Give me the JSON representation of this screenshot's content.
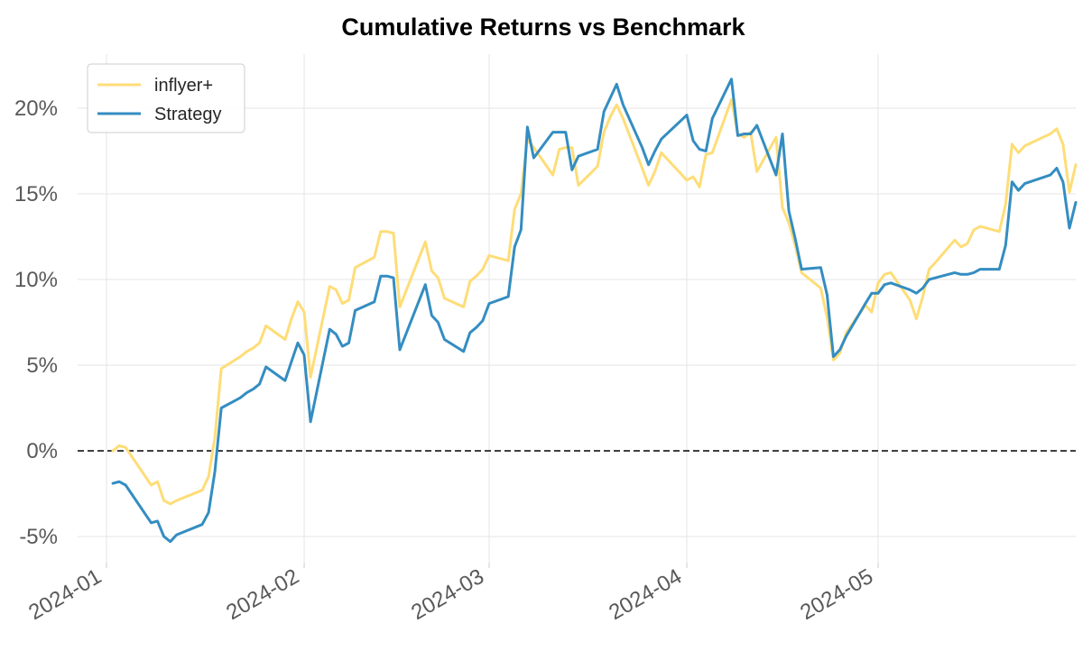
{
  "chart_data": {
    "type": "line",
    "title": "Cumulative Returns vs Benchmark",
    "xlabel": "",
    "ylabel": "",
    "x_tick_labels": [
      "2024-01",
      "2024-02",
      "2024-03",
      "2024-04",
      "2024-05"
    ],
    "y_tick_labels": [
      "-5%",
      "0%",
      "5%",
      "10%",
      "15%",
      "20%"
    ],
    "y_ticks": [
      -5,
      0,
      5,
      10,
      15,
      20
    ],
    "ylim": [
      -6.5,
      23
    ],
    "xlim": [
      "2023-12-24",
      "2024-05-30"
    ],
    "grid": true,
    "legend_position": "top-left",
    "zero_line": {
      "value": 0,
      "style": "dashed",
      "color": "#000000"
    },
    "series": [
      {
        "name": "inflyer+",
        "color": "#fedd78",
        "points": [
          [
            "2024-01-02",
            0.0
          ],
          [
            "2024-01-03",
            0.3
          ],
          [
            "2024-01-04",
            0.2
          ],
          [
            "2024-01-08",
            -2.0
          ],
          [
            "2024-01-09",
            -1.8
          ],
          [
            "2024-01-10",
            -2.9
          ],
          [
            "2024-01-11",
            -3.1
          ],
          [
            "2024-01-12",
            -2.9
          ],
          [
            "2024-01-16",
            -2.3
          ],
          [
            "2024-01-17",
            -1.5
          ],
          [
            "2024-01-18",
            0.8
          ],
          [
            "2024-01-19",
            4.8
          ],
          [
            "2024-01-22",
            5.5
          ],
          [
            "2024-01-23",
            5.8
          ],
          [
            "2024-01-24",
            6.0
          ],
          [
            "2024-01-25",
            6.3
          ],
          [
            "2024-01-26",
            7.3
          ],
          [
            "2024-01-29",
            6.5
          ],
          [
            "2024-01-30",
            7.7
          ],
          [
            "2024-01-31",
            8.7
          ],
          [
            "2024-02-01",
            8.1
          ],
          [
            "2024-02-02",
            4.3
          ],
          [
            "2024-02-05",
            9.6
          ],
          [
            "2024-02-06",
            9.4
          ],
          [
            "2024-02-07",
            8.6
          ],
          [
            "2024-02-08",
            8.8
          ],
          [
            "2024-02-09",
            10.7
          ],
          [
            "2024-02-12",
            11.3
          ],
          [
            "2024-02-13",
            12.8
          ],
          [
            "2024-02-14",
            12.8
          ],
          [
            "2024-02-15",
            12.7
          ],
          [
            "2024-02-16",
            8.4
          ],
          [
            "2024-02-20",
            12.2
          ],
          [
            "2024-02-21",
            10.5
          ],
          [
            "2024-02-22",
            10.1
          ],
          [
            "2024-02-23",
            8.9
          ],
          [
            "2024-02-26",
            8.4
          ],
          [
            "2024-02-27",
            9.9
          ],
          [
            "2024-02-28",
            10.2
          ],
          [
            "2024-02-29",
            10.6
          ],
          [
            "2024-03-01",
            11.4
          ],
          [
            "2024-03-04",
            11.1
          ],
          [
            "2024-03-05",
            14.1
          ],
          [
            "2024-03-06",
            15.0
          ],
          [
            "2024-03-07",
            18.2
          ],
          [
            "2024-03-08",
            17.7
          ],
          [
            "2024-03-11",
            16.1
          ],
          [
            "2024-03-12",
            17.6
          ],
          [
            "2024-03-13",
            17.7
          ],
          [
            "2024-03-14",
            17.7
          ],
          [
            "2024-03-15",
            15.5
          ],
          [
            "2024-03-18",
            16.6
          ],
          [
            "2024-03-19",
            18.6
          ],
          [
            "2024-03-20",
            19.5
          ],
          [
            "2024-03-21",
            20.2
          ],
          [
            "2024-03-22",
            19.4
          ],
          [
            "2024-03-25",
            16.5
          ],
          [
            "2024-03-26",
            15.5
          ],
          [
            "2024-03-27",
            16.3
          ],
          [
            "2024-03-28",
            17.4
          ],
          [
            "2024-04-01",
            15.8
          ],
          [
            "2024-04-02",
            16.0
          ],
          [
            "2024-04-03",
            15.4
          ],
          [
            "2024-04-04",
            17.3
          ],
          [
            "2024-04-05",
            17.4
          ],
          [
            "2024-04-08",
            20.5
          ],
          [
            "2024-04-09",
            18.5
          ],
          [
            "2024-04-10",
            18.3
          ],
          [
            "2024-04-11",
            18.6
          ],
          [
            "2024-04-12",
            16.3
          ],
          [
            "2024-04-15",
            18.3
          ],
          [
            "2024-04-16",
            14.2
          ],
          [
            "2024-04-17",
            13.3
          ],
          [
            "2024-04-18",
            12.0
          ],
          [
            "2024-04-19",
            10.4
          ],
          [
            "2024-04-22",
            9.5
          ],
          [
            "2024-04-23",
            7.8
          ],
          [
            "2024-04-24",
            5.3
          ],
          [
            "2024-04-25",
            5.7
          ],
          [
            "2024-04-26",
            6.9
          ],
          [
            "2024-04-29",
            8.5
          ],
          [
            "2024-04-30",
            8.1
          ],
          [
            "2024-05-01",
            9.8
          ],
          [
            "2024-05-02",
            10.3
          ],
          [
            "2024-05-03",
            10.4
          ],
          [
            "2024-05-06",
            8.8
          ],
          [
            "2024-05-07",
            7.7
          ],
          [
            "2024-05-08",
            9.0
          ],
          [
            "2024-05-09",
            10.6
          ],
          [
            "2024-05-10",
            11.0
          ],
          [
            "2024-05-13",
            12.3
          ],
          [
            "2024-05-14",
            11.9
          ],
          [
            "2024-05-15",
            12.1
          ],
          [
            "2024-05-16",
            12.9
          ],
          [
            "2024-05-17",
            13.1
          ],
          [
            "2024-05-20",
            12.8
          ],
          [
            "2024-05-21",
            14.4
          ],
          [
            "2024-05-22",
            17.9
          ],
          [
            "2024-05-23",
            17.4
          ],
          [
            "2024-05-24",
            17.8
          ],
          [
            "2024-05-28",
            18.5
          ],
          [
            "2024-05-29",
            18.8
          ],
          [
            "2024-05-30",
            17.9
          ],
          [
            "2024-05-31",
            15.1
          ],
          [
            "2024-06-01",
            16.7
          ]
        ]
      },
      {
        "name": "Strategy",
        "color": "#348dc1",
        "points": [
          [
            "2024-01-02",
            -1.9
          ],
          [
            "2024-01-03",
            -1.8
          ],
          [
            "2024-01-04",
            -2.0
          ],
          [
            "2024-01-08",
            -4.2
          ],
          [
            "2024-01-09",
            -4.1
          ],
          [
            "2024-01-10",
            -5.0
          ],
          [
            "2024-01-11",
            -5.3
          ],
          [
            "2024-01-12",
            -4.9
          ],
          [
            "2024-01-16",
            -4.3
          ],
          [
            "2024-01-17",
            -3.6
          ],
          [
            "2024-01-18",
            -1.2
          ],
          [
            "2024-01-19",
            2.5
          ],
          [
            "2024-01-22",
            3.1
          ],
          [
            "2024-01-23",
            3.4
          ],
          [
            "2024-01-24",
            3.6
          ],
          [
            "2024-01-25",
            3.9
          ],
          [
            "2024-01-26",
            4.9
          ],
          [
            "2024-01-29",
            4.1
          ],
          [
            "2024-01-30",
            5.2
          ],
          [
            "2024-01-31",
            6.3
          ],
          [
            "2024-02-01",
            5.6
          ],
          [
            "2024-02-02",
            1.7
          ],
          [
            "2024-02-05",
            7.1
          ],
          [
            "2024-02-06",
            6.8
          ],
          [
            "2024-02-07",
            6.1
          ],
          [
            "2024-02-08",
            6.3
          ],
          [
            "2024-02-09",
            8.2
          ],
          [
            "2024-02-12",
            8.7
          ],
          [
            "2024-02-13",
            10.2
          ],
          [
            "2024-02-14",
            10.2
          ],
          [
            "2024-02-15",
            10.1
          ],
          [
            "2024-02-16",
            5.9
          ],
          [
            "2024-02-20",
            9.7
          ],
          [
            "2024-02-21",
            7.9
          ],
          [
            "2024-02-22",
            7.5
          ],
          [
            "2024-02-23",
            6.5
          ],
          [
            "2024-02-26",
            5.8
          ],
          [
            "2024-02-27",
            6.9
          ],
          [
            "2024-02-28",
            7.2
          ],
          [
            "2024-02-29",
            7.6
          ],
          [
            "2024-03-01",
            8.6
          ],
          [
            "2024-03-04",
            9.0
          ],
          [
            "2024-03-05",
            11.9
          ],
          [
            "2024-03-06",
            12.9
          ],
          [
            "2024-03-07",
            18.9
          ],
          [
            "2024-03-08",
            17.1
          ],
          [
            "2024-03-11",
            18.6
          ],
          [
            "2024-03-12",
            18.6
          ],
          [
            "2024-03-13",
            18.6
          ],
          [
            "2024-03-14",
            16.4
          ],
          [
            "2024-03-15",
            17.2
          ],
          [
            "2024-03-18",
            17.6
          ],
          [
            "2024-03-19",
            19.8
          ],
          [
            "2024-03-20",
            20.6
          ],
          [
            "2024-03-21",
            21.4
          ],
          [
            "2024-03-22",
            20.2
          ],
          [
            "2024-03-25",
            17.7
          ],
          [
            "2024-03-26",
            16.7
          ],
          [
            "2024-03-27",
            17.5
          ],
          [
            "2024-03-28",
            18.2
          ],
          [
            "2024-04-01",
            19.6
          ],
          [
            "2024-04-02",
            18.1
          ],
          [
            "2024-04-03",
            17.6
          ],
          [
            "2024-04-04",
            17.5
          ],
          [
            "2024-04-05",
            19.4
          ],
          [
            "2024-04-08",
            21.7
          ],
          [
            "2024-04-09",
            18.4
          ],
          [
            "2024-04-10",
            18.5
          ],
          [
            "2024-04-11",
            18.5
          ],
          [
            "2024-04-12",
            19.0
          ],
          [
            "2024-04-15",
            16.1
          ],
          [
            "2024-04-16",
            18.5
          ],
          [
            "2024-04-17",
            14.0
          ],
          [
            "2024-04-18",
            12.4
          ],
          [
            "2024-04-19",
            10.6
          ],
          [
            "2024-04-22",
            10.7
          ],
          [
            "2024-04-23",
            9.1
          ],
          [
            "2024-04-24",
            5.5
          ],
          [
            "2024-04-25",
            5.9
          ],
          [
            "2024-04-26",
            6.7
          ],
          [
            "2024-04-29",
            8.6
          ],
          [
            "2024-04-30",
            9.2
          ],
          [
            "2024-05-01",
            9.2
          ],
          [
            "2024-05-02",
            9.7
          ],
          [
            "2024-05-03",
            9.8
          ],
          [
            "2024-05-06",
            9.4
          ],
          [
            "2024-05-07",
            9.2
          ],
          [
            "2024-05-08",
            9.5
          ],
          [
            "2024-05-09",
            10.0
          ],
          [
            "2024-05-10",
            10.1
          ],
          [
            "2024-05-13",
            10.4
          ],
          [
            "2024-05-14",
            10.3
          ],
          [
            "2024-05-15",
            10.3
          ],
          [
            "2024-05-16",
            10.4
          ],
          [
            "2024-05-17",
            10.6
          ],
          [
            "2024-05-20",
            10.6
          ],
          [
            "2024-05-21",
            12.0
          ],
          [
            "2024-05-22",
            15.7
          ],
          [
            "2024-05-23",
            15.2
          ],
          [
            "2024-05-24",
            15.6
          ],
          [
            "2024-05-28",
            16.1
          ],
          [
            "2024-05-29",
            16.5
          ],
          [
            "2024-05-30",
            15.7
          ],
          [
            "2024-05-31",
            13.0
          ],
          [
            "2024-06-01",
            14.5
          ]
        ]
      }
    ]
  }
}
